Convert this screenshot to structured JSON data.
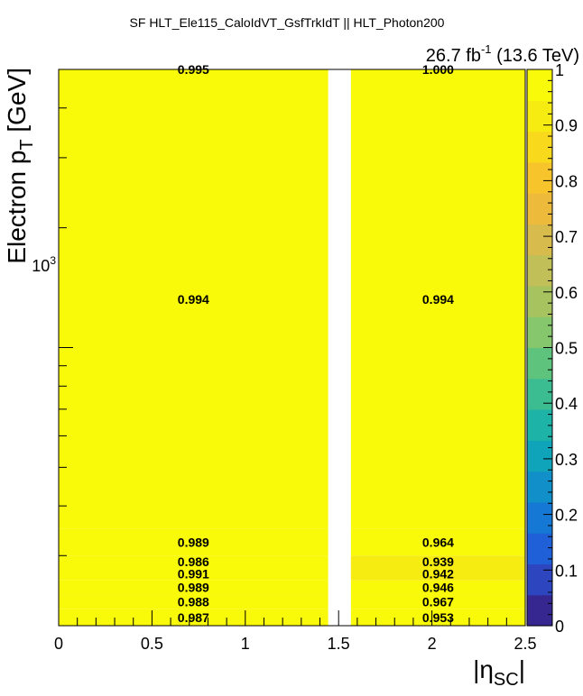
{
  "header": {
    "title": "SF HLT_Ele115_CaloIdVT_GsfTrkIdT || HLT_Photon200",
    "lumi_value": "26.7 fb",
    "lumi_exp": "-1",
    "lumi_energy": " (13.6 TeV)"
  },
  "axes": {
    "x_title_main": "|η",
    "x_title_sub": "SC",
    "x_title_close": "|",
    "y_title_main": "Electron p",
    "y_title_sub": "T",
    "y_title_tail": " [GeV]",
    "y_tick_base": "10",
    "y_tick_exp": "3"
  },
  "colors": {
    "cell_full": "#f9f90a",
    "cell_high": "#f2e51f",
    "palette": [
      "#35278f",
      "#2d46bf",
      "#1f60d8",
      "#1478d4",
      "#118fc8",
      "#10a4bb",
      "#1db4a7",
      "#3bbc91",
      "#5ec37c",
      "#86c66c",
      "#a6c35f",
      "#c1bf57",
      "#d7bb4c",
      "#edba3c",
      "#f8c42b",
      "#f9d91b",
      "#f7ec12",
      "#f9f90a"
    ]
  },
  "chart_data": {
    "type": "heatmap",
    "title": "SF HLT_Ele115_CaloIdVT_GsfTrkIdT || HLT_Photon200",
    "xlabel": "|η_SC|",
    "ylabel": "Electron p_T [GeV]",
    "xlim": [
      0,
      2.5
    ],
    "ylim": [
      200,
      5000
    ],
    "y_scale": "log",
    "x_ticks": [
      "0",
      "0.5",
      "1",
      "1.5",
      "2",
      "2.5"
    ],
    "z_range": [
      0,
      1
    ],
    "z_ticks": [
      "0",
      "0.1",
      "0.2",
      "0.3",
      "0.4",
      "0.5",
      "0.6",
      "0.7",
      "0.8",
      "0.9",
      "1"
    ],
    "x_bins": [
      0,
      1.444,
      1.566,
      2.5
    ],
    "y_bins": [
      200,
      220,
      240,
      260,
      280,
      300,
      350,
      5000
    ],
    "cells": [
      {
        "x": [
          0,
          1.444
        ],
        "y": [
          200,
          220
        ],
        "value": 0.987,
        "label": "0.987"
      },
      {
        "x": [
          0,
          1.444
        ],
        "y": [
          220,
          240
        ],
        "value": 0.988,
        "label": "0.988"
      },
      {
        "x": [
          0,
          1.444
        ],
        "y": [
          240,
          260
        ],
        "value": 0.989,
        "label": "0.989"
      },
      {
        "x": [
          0,
          1.444
        ],
        "y": [
          260,
          280
        ],
        "value": 0.991,
        "label": "0.991"
      },
      {
        "x": [
          0,
          1.444
        ],
        "y": [
          280,
          300
        ],
        "value": 0.986,
        "label": "0.986"
      },
      {
        "x": [
          0,
          1.444
        ],
        "y": [
          300,
          350
        ],
        "value": 0.989,
        "label": "0.989"
      },
      {
        "x": [
          0,
          1.444
        ],
        "y": [
          350,
          5000
        ],
        "value": 0.994,
        "label": "0.994"
      },
      {
        "x": [
          0,
          1.444
        ],
        "y": [
          5000,
          5000
        ],
        "value": 0.995,
        "label": "0.995"
      },
      {
        "x": [
          1.566,
          2.5
        ],
        "y": [
          200,
          220
        ],
        "value": 0.953,
        "label": "0.953"
      },
      {
        "x": [
          1.566,
          2.5
        ],
        "y": [
          220,
          240
        ],
        "value": 0.967,
        "label": "0.967"
      },
      {
        "x": [
          1.566,
          2.5
        ],
        "y": [
          240,
          260
        ],
        "value": 0.946,
        "label": "0.946"
      },
      {
        "x": [
          1.566,
          2.5
        ],
        "y": [
          260,
          280
        ],
        "value": 0.942,
        "label": "0.942"
      },
      {
        "x": [
          1.566,
          2.5
        ],
        "y": [
          280,
          300
        ],
        "value": 0.939,
        "label": "0.939"
      },
      {
        "x": [
          1.566,
          2.5
        ],
        "y": [
          300,
          350
        ],
        "value": 0.964,
        "label": "0.964"
      },
      {
        "x": [
          1.566,
          2.5
        ],
        "y": [
          350,
          5000
        ],
        "value": 0.994,
        "label": "0.994"
      },
      {
        "x": [
          1.566,
          2.5
        ],
        "y": [
          5000,
          5000
        ],
        "value": 1.0,
        "label": "1.000"
      }
    ],
    "grid": false,
    "legend": "colorbar-right"
  }
}
